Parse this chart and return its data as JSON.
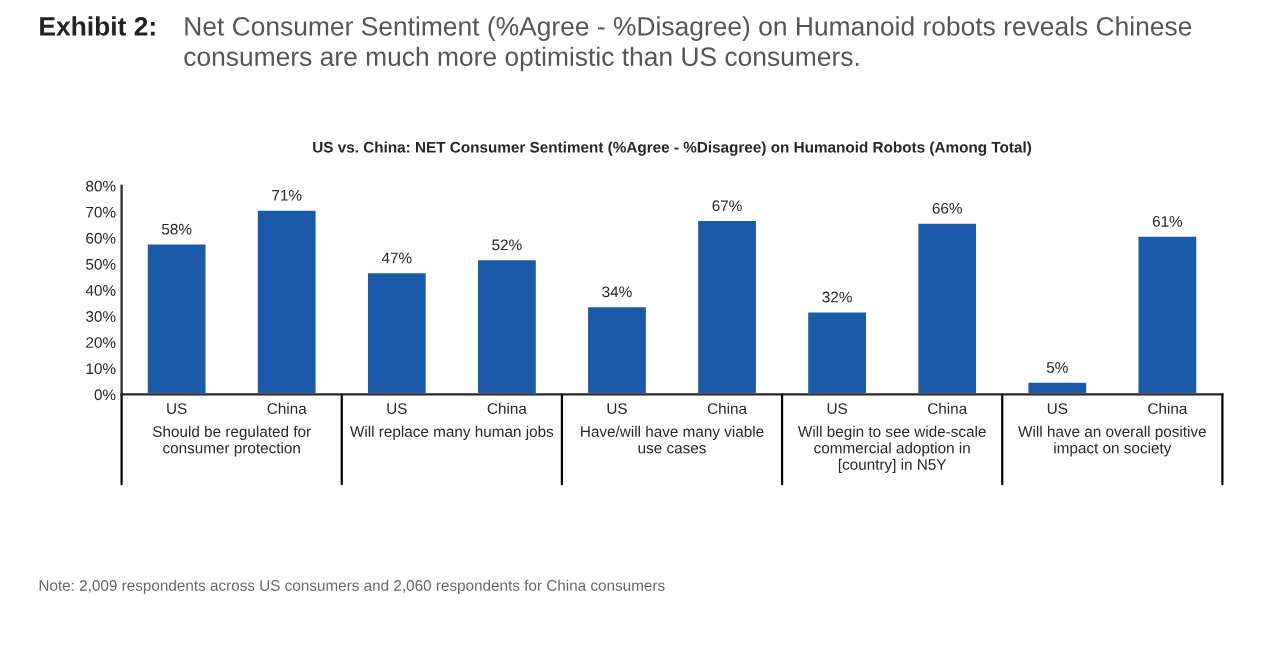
{
  "chart_data": {
    "type": "bar",
    "title": "US vs. China: NET Consumer Sentiment (%Agree - %Disagree) on Humanoid Robots (Among Total)",
    "subtitle": "Exhibit 2:   Net Consumer Sentiment (%Agree - %Disagree) on Humanoid robots reveals Chinese consumers are much more optimistic than US consumers.",
    "categories": [
      "US",
      "China",
      "US",
      "China",
      "US",
      "China",
      "US",
      "China",
      "US",
      "China"
    ],
    "values": [
      58,
      71,
      47,
      52,
      34,
      67,
      32,
      66,
      5,
      61
    ],
    "color": "#1a5aa8",
    "value_labels": [
      "58%",
      "71%",
      "47%",
      "52%",
      "34%",
      "67%",
      "32%",
      "66%",
      "5%",
      "61%"
    ],
    "ylim": [
      0,
      80
    ],
    "yticks": [
      {
        "value": 0,
        "label": "0%"
      },
      {
        "value": 10,
        "label": "10%"
      },
      {
        "value": 20,
        "label": "20%"
      },
      {
        "value": 30,
        "label": "30%"
      },
      {
        "value": 40,
        "label": "40%"
      },
      {
        "value": 50,
        "label": "50%"
      },
      {
        "value": 60,
        "label": "60%"
      },
      {
        "value": 70,
        "label": "70%"
      },
      {
        "value": 80,
        "label": "80%"
      }
    ],
    "grid": false,
    "annotations": [
      "Should be regulated for\nconsumer protection",
      "Will replace many human jobs",
      "Have/will have many viable\nuse cases",
      "Will begin to see wide-scale\ncommercial adoption in\n[country] in N5Y",
      "Will have an overall positive\nimpact on society",
      "Note: 2,009 respondents across US consumers and 2,060 respondents for China consumers"
    ]
  }
}
